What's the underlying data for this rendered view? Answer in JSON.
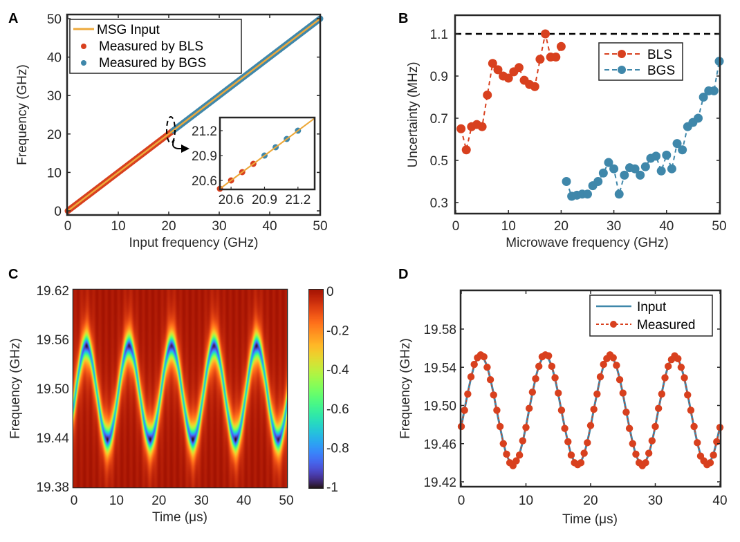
{
  "figure": {
    "panels": [
      "A",
      "B",
      "C",
      "D"
    ]
  },
  "chart_data": [
    {
      "panel": "A",
      "type": "line",
      "title": "",
      "xlabel": "Input frequency (GHz)",
      "ylabel": "Frequency (GHz)",
      "xlim": [
        0,
        50
      ],
      "ylim": [
        0,
        50
      ],
      "xticks": [
        "0",
        "10",
        "20",
        "30",
        "40",
        "50"
      ],
      "yticks": [
        "0",
        "10",
        "20",
        "30",
        "40",
        "50"
      ],
      "legend": {
        "position": "top-left",
        "entries": [
          "MSG Input",
          "Measured by BLS",
          "Measured by BGS"
        ]
      },
      "colors": {
        "input": "#EDA93B",
        "bls": "#D8401E",
        "bgs": "#3F87AA"
      },
      "series": [
        {
          "name": "MSG Input",
          "style": "line",
          "x": [
            0,
            50
          ],
          "y": [
            0,
            50
          ]
        },
        {
          "name": "Measured by BLS",
          "style": "dense-markers",
          "x_range": [
            0,
            20.8
          ],
          "relation": "y = x"
        },
        {
          "name": "Measured by BGS",
          "style": "dense-markers",
          "x_range": [
            20.9,
            50
          ],
          "relation": "y = x"
        }
      ],
      "annotation": "dashed ellipse around 20 GHz with arrow pointing to inset",
      "inset": {
        "xlim": [
          20.5,
          21.35
        ],
        "ylim": [
          20.5,
          21.35
        ],
        "xticks": [
          "20.6",
          "20.9",
          "21.2"
        ],
        "yticks": [
          "20.6",
          "20.9",
          "21.2"
        ],
        "bls_points": {
          "x": [
            20.5,
            20.6,
            20.7,
            20.8
          ],
          "y": [
            20.5,
            20.6,
            20.7,
            20.8
          ]
        },
        "bgs_points": {
          "x": [
            20.9,
            21.0,
            21.1,
            21.2
          ],
          "y": [
            20.9,
            21.0,
            21.1,
            21.2
          ]
        },
        "line": {
          "x": [
            20.5,
            21.35
          ],
          "y": [
            20.5,
            21.35
          ]
        }
      }
    },
    {
      "panel": "B",
      "type": "line",
      "title": "",
      "xlabel": "Microwave frequency (GHz)",
      "ylabel": "Uncertainty (MHz)",
      "xlim": [
        0,
        50
      ],
      "ylim": [
        0.25,
        1.19
      ],
      "xticks": [
        "0",
        "10",
        "20",
        "30",
        "40",
        "50"
      ],
      "yticks": [
        "0.3",
        "0.5",
        "0.7",
        "0.9",
        "1.1"
      ],
      "ytick_values": [
        0.3,
        0.5,
        0.7,
        0.9,
        1.1
      ],
      "reference_line": {
        "y": 1.1,
        "style": "dashed",
        "color": "#000000"
      },
      "legend": {
        "position": "top-right",
        "entries": [
          "BLS",
          "BGS"
        ]
      },
      "colors": {
        "bls": "#D8401E",
        "bgs": "#3F87AA"
      },
      "series": [
        {
          "name": "BLS",
          "x": [
            1,
            2,
            3,
            4,
            5,
            6,
            7,
            8,
            9,
            10,
            11,
            12,
            13,
            14,
            15,
            16,
            17,
            18,
            19,
            20
          ],
          "y": [
            0.65,
            0.55,
            0.66,
            0.67,
            0.66,
            0.81,
            0.96,
            0.93,
            0.9,
            0.89,
            0.92,
            0.94,
            0.88,
            0.86,
            0.85,
            0.98,
            1.1,
            0.99,
            0.99,
            1.04
          ]
        },
        {
          "name": "BGS",
          "x": [
            21,
            22,
            23,
            24,
            25,
            26,
            27,
            28,
            29,
            30,
            31,
            32,
            33,
            34,
            35,
            36,
            37,
            38,
            39,
            40,
            41,
            42,
            43,
            44,
            45,
            46,
            47,
            48,
            49,
            50
          ],
          "y": [
            0.4,
            0.33,
            0.335,
            0.34,
            0.34,
            0.38,
            0.4,
            0.44,
            0.49,
            0.46,
            0.34,
            0.43,
            0.465,
            0.46,
            0.43,
            0.47,
            0.51,
            0.52,
            0.45,
            0.525,
            0.46,
            0.58,
            0.55,
            0.66,
            0.68,
            0.7,
            0.8,
            0.83,
            0.83,
            0.97
          ]
        }
      ]
    },
    {
      "panel": "C",
      "type": "heatmap",
      "title": "",
      "xlabel": "Time (μs)",
      "ylabel": "Frequency (GHz)",
      "xlim": [
        0,
        50
      ],
      "ylim": [
        19.38,
        19.62
      ],
      "xticks": [
        "0",
        "10",
        "20",
        "30",
        "40",
        "50"
      ],
      "yticks": [
        "19.38",
        "19.44",
        "19.50",
        "19.56",
        "19.62"
      ],
      "ytick_values": [
        19.38,
        19.44,
        19.5,
        19.56,
        19.62
      ],
      "colorbar": {
        "colormap": "turbo",
        "range": [
          -1,
          0
        ],
        "ticks": [
          "0",
          "-0.2",
          "-0.4",
          "-0.6",
          "-0.8",
          "-1"
        ],
        "tick_values": [
          0,
          -0.2,
          -0.4,
          -0.6,
          -0.8,
          -1
        ]
      },
      "signal": {
        "shape": "sinusoid",
        "center_GHz": 19.495,
        "amplitude_GHz": 0.057,
        "period_us": 10,
        "phase_offset_us": 0.48,
        "linewidth_GHz": 0.012,
        "min_value": -1
      }
    },
    {
      "panel": "D",
      "type": "line",
      "title": "",
      "xlabel": "Time (μs)",
      "ylabel": "Frequency (GHz)",
      "xlim": [
        0,
        40
      ],
      "ylim": [
        19.415,
        19.62
      ],
      "xticks": [
        "0",
        "10",
        "20",
        "30",
        "40"
      ],
      "yticks": [
        "19.42",
        "19.46",
        "19.50",
        "19.54",
        "19.58"
      ],
      "ytick_values": [
        19.42,
        19.46,
        19.5,
        19.54,
        19.58
      ],
      "legend": {
        "position": "top-right",
        "entries": [
          "Input",
          "Measured"
        ]
      },
      "colors": {
        "input": "#3F87AA",
        "measured": "#D8401E"
      },
      "x_step": 0.5,
      "series": [
        {
          "name": "Input",
          "style": "solid",
          "y": [
            19.478,
            19.496,
            19.513,
            19.529,
            19.542,
            19.549,
            19.552,
            19.549,
            19.541,
            19.528,
            19.512,
            19.494,
            19.477,
            19.461,
            19.448,
            19.441,
            19.438,
            19.441,
            19.449,
            19.462,
            19.478,
            19.496,
            19.513,
            19.529,
            19.542,
            19.549,
            19.552,
            19.549,
            19.541,
            19.528,
            19.512,
            19.494,
            19.477,
            19.461,
            19.448,
            19.441,
            19.438,
            19.441,
            19.449,
            19.462,
            19.478,
            19.496,
            19.513,
            19.529,
            19.542,
            19.549,
            19.552,
            19.549,
            19.541,
            19.528,
            19.512,
            19.494,
            19.477,
            19.461,
            19.448,
            19.441,
            19.438,
            19.441,
            19.449,
            19.462,
            19.478,
            19.496,
            19.513,
            19.529,
            19.542,
            19.549,
            19.552,
            19.549,
            19.541,
            19.528,
            19.512,
            19.494,
            19.477,
            19.461,
            19.448,
            19.441,
            19.438,
            19.441,
            19.449,
            19.462,
            19.478
          ]
        },
        {
          "name": "Measured",
          "style": "dashed-markers",
          "y": [
            19.478,
            19.495,
            19.512,
            19.53,
            19.543,
            19.55,
            19.553,
            19.551,
            19.54,
            19.527,
            19.511,
            19.495,
            19.478,
            19.46,
            19.449,
            19.44,
            19.437,
            19.442,
            19.448,
            19.463,
            19.477,
            19.497,
            19.514,
            19.528,
            19.541,
            19.551,
            19.553,
            19.552,
            19.541,
            19.529,
            19.513,
            19.495,
            19.476,
            19.462,
            19.448,
            19.44,
            19.438,
            19.44,
            19.45,
            19.461,
            19.479,
            19.496,
            19.512,
            19.53,
            19.543,
            19.549,
            19.553,
            19.55,
            19.542,
            19.527,
            19.513,
            19.493,
            19.476,
            19.46,
            19.449,
            19.44,
            19.437,
            19.44,
            19.45,
            19.463,
            19.478,
            19.497,
            19.512,
            19.529,
            19.541,
            19.548,
            19.552,
            19.549,
            19.54,
            19.529,
            19.511,
            19.495,
            19.478,
            19.461,
            19.447,
            19.442,
            19.438,
            19.44,
            19.448,
            19.462,
            19.477
          ]
        }
      ]
    }
  ]
}
